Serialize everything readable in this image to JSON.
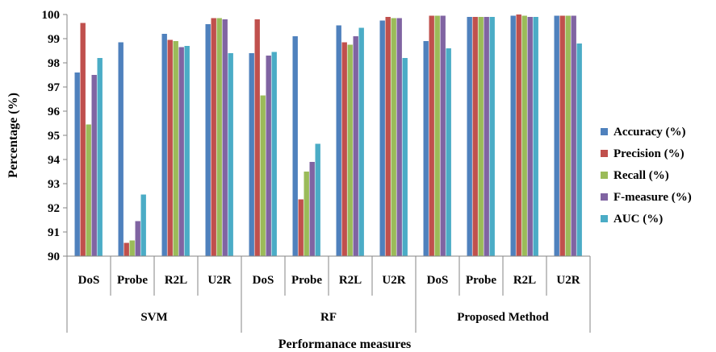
{
  "chart_data": {
    "type": "bar",
    "ylabel": "Percentage (%)",
    "xlabel": "Performanace measures",
    "ylim": [
      90,
      100
    ],
    "yticks": [
      90,
      91,
      92,
      93,
      94,
      95,
      96,
      97,
      98,
      99,
      100
    ],
    "groups": [
      {
        "name": "SVM",
        "categories": [
          "DoS",
          "Probe",
          "R2L",
          "U2R"
        ]
      },
      {
        "name": "RF",
        "categories": [
          "DoS",
          "Probe",
          "R2L",
          "U2R"
        ]
      },
      {
        "name": "Proposed Method",
        "categories": [
          "DoS",
          "Probe",
          "R2L",
          "U2R"
        ]
      }
    ],
    "series": [
      {
        "name": "Accuracy (%)",
        "color": "#4F81BD",
        "values": [
          97.6,
          98.85,
          99.2,
          99.6,
          98.4,
          99.1,
          99.55,
          99.75,
          98.9,
          99.9,
          99.95,
          99.95
        ]
      },
      {
        "name": "Precision (%)",
        "color": "#C0504D",
        "values": [
          99.65,
          90.55,
          98.95,
          99.85,
          99.8,
          92.35,
          98.85,
          99.9,
          99.95,
          99.9,
          100.0,
          99.95
        ]
      },
      {
        "name": "Recall (%)",
        "color": "#9BBB59",
        "values": [
          95.45,
          90.65,
          98.9,
          99.85,
          96.65,
          93.5,
          98.75,
          99.85,
          99.95,
          99.9,
          99.95,
          99.95
        ]
      },
      {
        "name": "F-measure (%)",
        "color": "#8064A2",
        "values": [
          97.5,
          91.45,
          98.65,
          99.8,
          98.3,
          93.9,
          99.1,
          99.85,
          99.95,
          99.9,
          99.9,
          99.95
        ]
      },
      {
        "name": "AUC (%)",
        "color": "#4BACC6",
        "values": [
          98.2,
          92.55,
          98.7,
          98.4,
          98.45,
          94.65,
          99.45,
          98.2,
          98.6,
          99.9,
          99.9,
          98.8
        ]
      }
    ],
    "legend_position": "right",
    "grid": false
  }
}
